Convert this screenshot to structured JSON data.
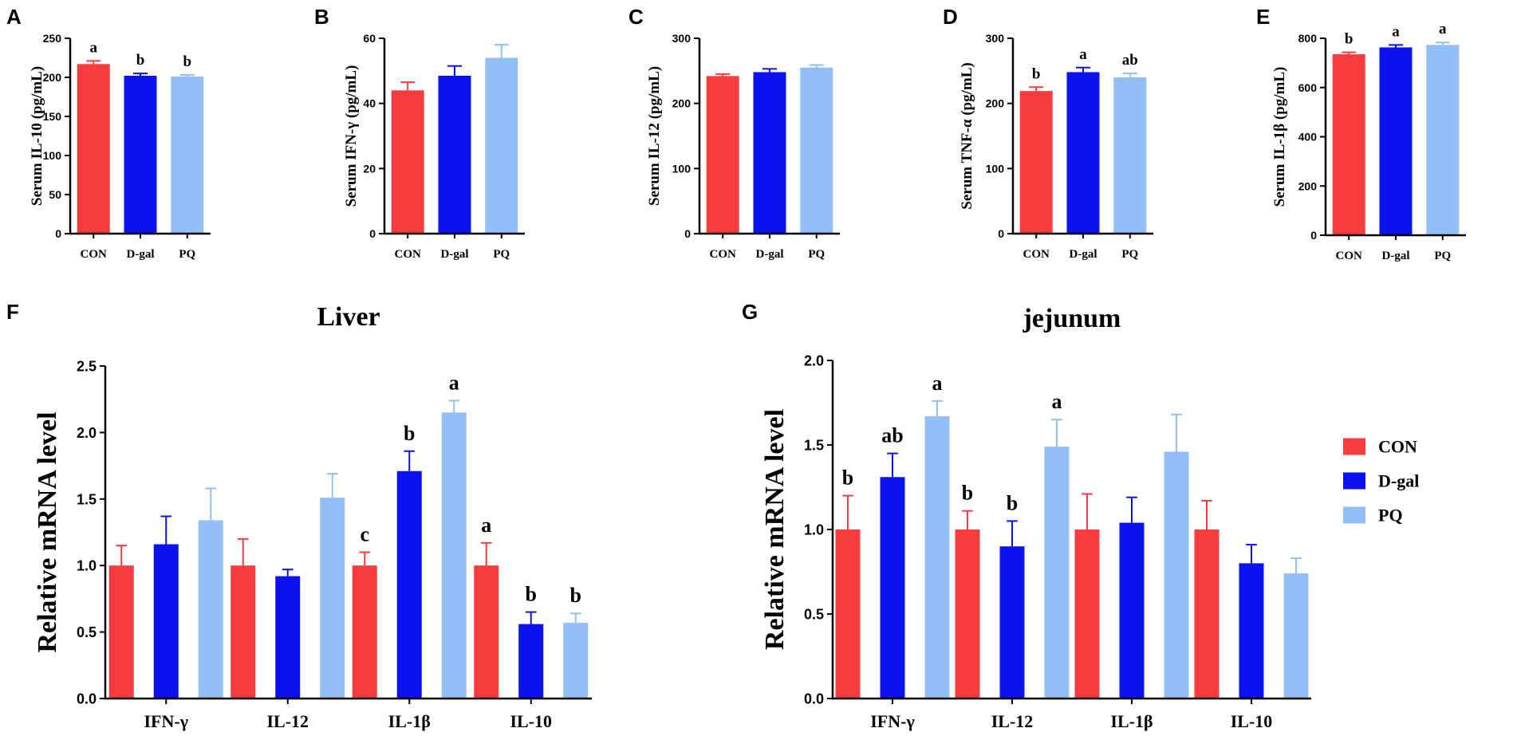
{
  "colors": {
    "CON": "#f73c3f",
    "D-gal": "#0a12ee",
    "PQ": "#92bff5"
  },
  "legend": {
    "items": [
      "CON",
      "D-gal",
      "PQ"
    ]
  },
  "chart_data": [
    {
      "panel": "A",
      "type": "bar",
      "title": "",
      "xlabel": "",
      "ylabel": "Serum IL-10 (pg/mL)",
      "categories": [
        "CON",
        "D-gal",
        "PQ"
      ],
      "ylim": [
        0,
        250
      ],
      "yticks": [
        0,
        50,
        100,
        150,
        200,
        250
      ],
      "values": [
        217,
        202,
        201
      ],
      "errors": [
        4,
        3,
        2
      ],
      "letters": [
        "a",
        "b",
        "b"
      ]
    },
    {
      "panel": "B",
      "type": "bar",
      "title": "",
      "xlabel": "",
      "ylabel": "Serum IFN-γ (pg/mL)",
      "categories": [
        "CON",
        "D-gal",
        "PQ"
      ],
      "ylim": [
        0,
        60
      ],
      "yticks": [
        0,
        20,
        40,
        60
      ],
      "values": [
        44,
        48.5,
        54
      ],
      "errors": [
        2.5,
        3,
        4
      ],
      "letters": [
        "",
        "",
        ""
      ]
    },
    {
      "panel": "C",
      "type": "bar",
      "title": "",
      "xlabel": "",
      "ylabel": "Serum IL-12 (pg/mL)",
      "categories": [
        "CON",
        "D-gal",
        "PQ"
      ],
      "ylim": [
        0,
        300
      ],
      "yticks": [
        0,
        100,
        200,
        300
      ],
      "values": [
        242,
        248,
        255
      ],
      "errors": [
        3,
        5,
        4
      ],
      "letters": [
        "",
        "",
        ""
      ]
    },
    {
      "panel": "D",
      "type": "bar",
      "title": "",
      "xlabel": "",
      "ylabel": "Serum TNF-α (pg/mL)",
      "categories": [
        "CON",
        "D-gal",
        "PQ"
      ],
      "ylim": [
        0,
        300
      ],
      "yticks": [
        0,
        100,
        200,
        300
      ],
      "values": [
        219,
        248,
        240
      ],
      "errors": [
        6,
        7,
        6
      ],
      "letters": [
        "b",
        "a",
        "ab"
      ]
    },
    {
      "panel": "E",
      "type": "bar",
      "title": "",
      "xlabel": "",
      "ylabel": "Serum IL-1β (pg/mL)",
      "categories": [
        "CON",
        "D-gal",
        "PQ"
      ],
      "ylim": [
        0,
        800
      ],
      "yticks": [
        0,
        200,
        400,
        600,
        800
      ],
      "values": [
        735,
        763,
        773
      ],
      "errors": [
        8,
        10,
        10
      ],
      "letters": [
        "b",
        "a",
        "a"
      ]
    },
    {
      "panel": "F",
      "type": "bar",
      "title": "Liver",
      "xlabel": "",
      "ylabel": "Relative mRNA level",
      "categories": [
        "IFN-γ",
        "IL-12",
        "IL-1β",
        "IL-10"
      ],
      "ylim": [
        0,
        2.5
      ],
      "yticks": [
        "0.0",
        "0.5",
        "1.0",
        "1.5",
        "2.0",
        "2.5"
      ],
      "series": [
        {
          "name": "CON",
          "values": [
            1.0,
            1.0,
            1.0,
            1.0
          ],
          "errors": [
            0.15,
            0.2,
            0.1,
            0.17
          ],
          "letters": [
            "",
            "",
            "c",
            "a"
          ]
        },
        {
          "name": "D-gal",
          "values": [
            1.16,
            0.92,
            1.71,
            0.56
          ],
          "errors": [
            0.21,
            0.05,
            0.15,
            0.09
          ],
          "letters": [
            "",
            "",
            "b",
            "b"
          ]
        },
        {
          "name": "PQ",
          "values": [
            1.34,
            1.51,
            2.15,
            0.57
          ],
          "errors": [
            0.24,
            0.18,
            0.09,
            0.07
          ],
          "letters": [
            "",
            "",
            "a",
            "b"
          ]
        }
      ]
    },
    {
      "panel": "G",
      "type": "bar",
      "title": "jejunum",
      "xlabel": "",
      "ylabel": "Relative mRNA level",
      "categories": [
        "IFN-γ",
        "IL-12",
        "IL-1β",
        "IL-10"
      ],
      "ylim": [
        0,
        2.0
      ],
      "yticks": [
        "0.0",
        "0.5",
        "1.0",
        "1.5",
        "2.0"
      ],
      "legend": "right",
      "series": [
        {
          "name": "CON",
          "values": [
            1.0,
            1.0,
            1.0,
            1.0
          ],
          "errors": [
            0.2,
            0.11,
            0.21,
            0.17
          ],
          "letters": [
            "b",
            "b",
            "",
            ""
          ]
        },
        {
          "name": "D-gal",
          "values": [
            1.31,
            0.9,
            1.04,
            0.8
          ],
          "errors": [
            0.14,
            0.15,
            0.15,
            0.11
          ],
          "letters": [
            "ab",
            "b",
            "",
            ""
          ]
        },
        {
          "name": "PQ",
          "values": [
            1.67,
            1.49,
            1.46,
            0.74
          ],
          "errors": [
            0.09,
            0.16,
            0.22,
            0.09
          ],
          "letters": [
            "a",
            "a",
            "",
            ""
          ]
        }
      ]
    }
  ]
}
